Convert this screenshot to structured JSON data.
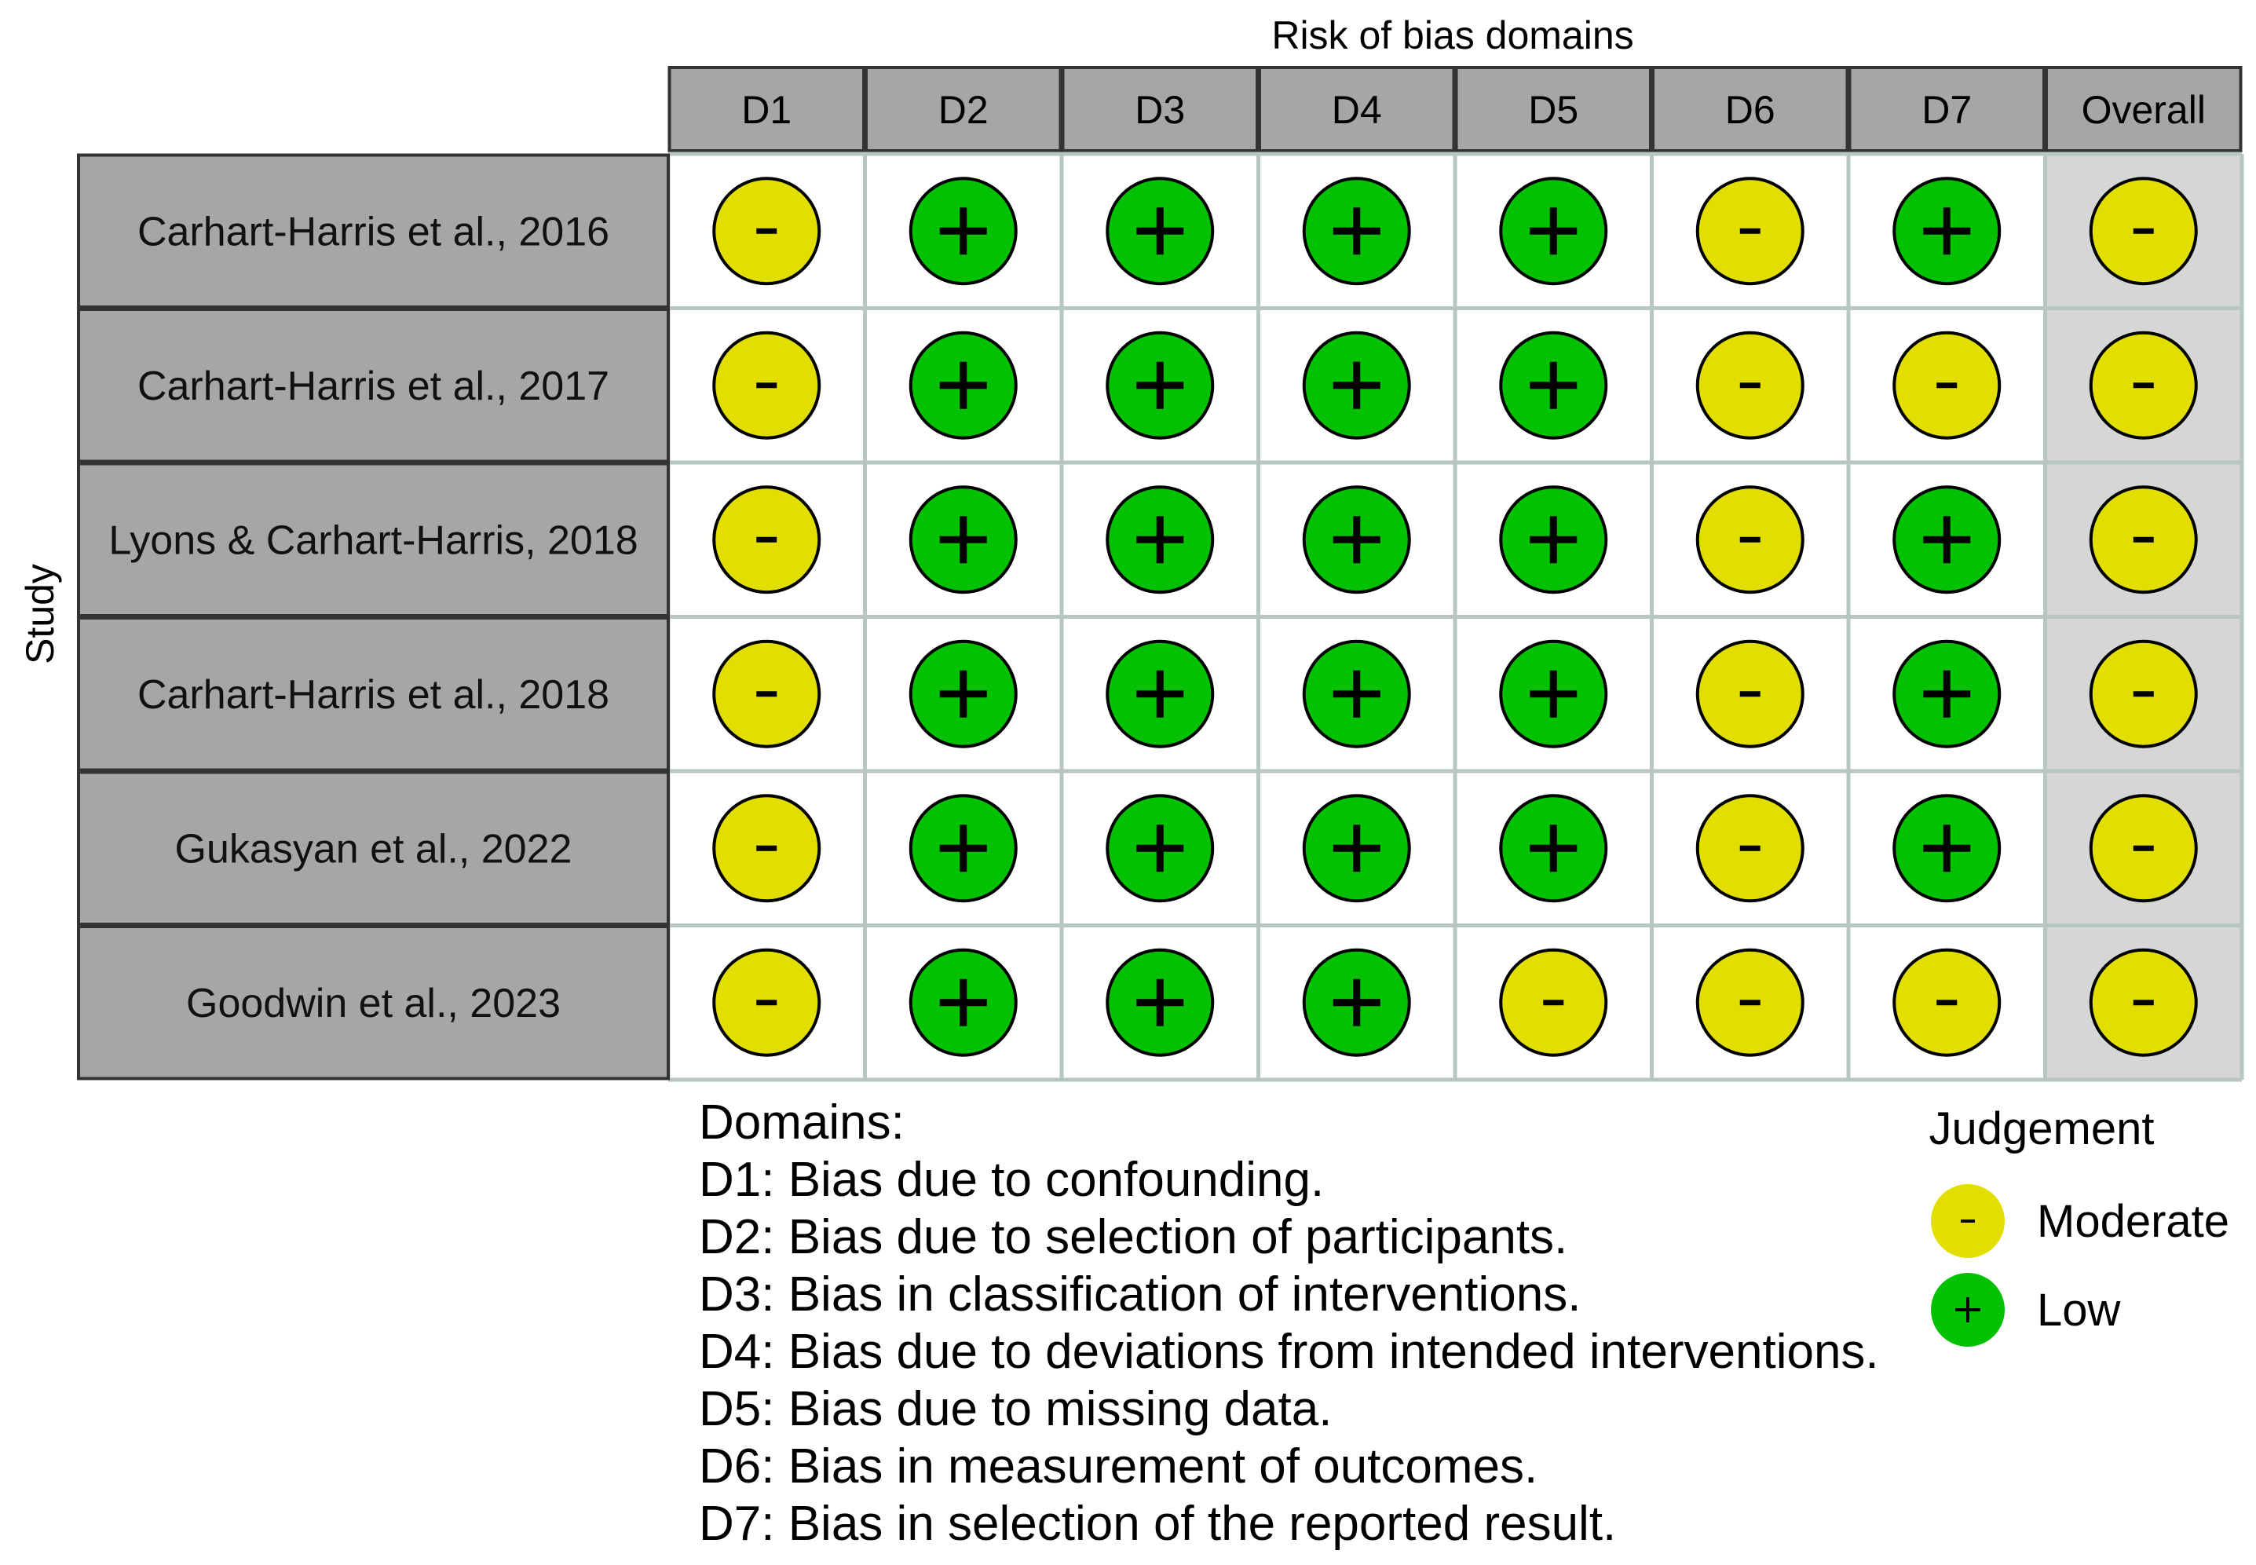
{
  "chart_data": {
    "type": "table",
    "title": "Risk of bias domains",
    "ylabel": "Study",
    "columns": [
      "D1",
      "D2",
      "D3",
      "D4",
      "D5",
      "D6",
      "D7",
      "Overall"
    ],
    "studies": [
      {
        "name": "Carhart-Harris et al., 2016",
        "judgements": [
          "Moderate",
          "Low",
          "Low",
          "Low",
          "Low",
          "Moderate",
          "Low",
          "Moderate"
        ]
      },
      {
        "name": "Carhart-Harris et al., 2017",
        "judgements": [
          "Moderate",
          "Low",
          "Low",
          "Low",
          "Low",
          "Moderate",
          "Moderate",
          "Moderate"
        ]
      },
      {
        "name": "Lyons & Carhart-Harris, 2018",
        "judgements": [
          "Moderate",
          "Low",
          "Low",
          "Low",
          "Low",
          "Moderate",
          "Low",
          "Moderate"
        ]
      },
      {
        "name": "Carhart-Harris et al., 2018",
        "judgements": [
          "Moderate",
          "Low",
          "Low",
          "Low",
          "Low",
          "Moderate",
          "Low",
          "Moderate"
        ]
      },
      {
        "name": "Gukasyan et al., 2022",
        "judgements": [
          "Moderate",
          "Low",
          "Low",
          "Low",
          "Low",
          "Moderate",
          "Low",
          "Moderate"
        ]
      },
      {
        "name": "Goodwin et al., 2023",
        "judgements": [
          "Moderate",
          "Low",
          "Low",
          "Low",
          "Moderate",
          "Moderate",
          "Moderate",
          "Moderate"
        ]
      }
    ],
    "domains_title": "Domains:",
    "domains": [
      "D1: Bias due to confounding.",
      "D2: Bias due to selection of participants.",
      "D3: Bias in classification of interventions.",
      "D4: Bias due to deviations from intended interventions.",
      "D5: Bias due to missing data.",
      "D6: Bias in measurement of outcomes.",
      "D7: Bias in selection of the reported result."
    ],
    "legend": {
      "title": "Judgement",
      "items": [
        {
          "label": "Moderate",
          "symbol": "-",
          "color": "#e2df00"
        },
        {
          "label": "Low",
          "symbol": "+",
          "color": "#02c100"
        }
      ]
    }
  }
}
